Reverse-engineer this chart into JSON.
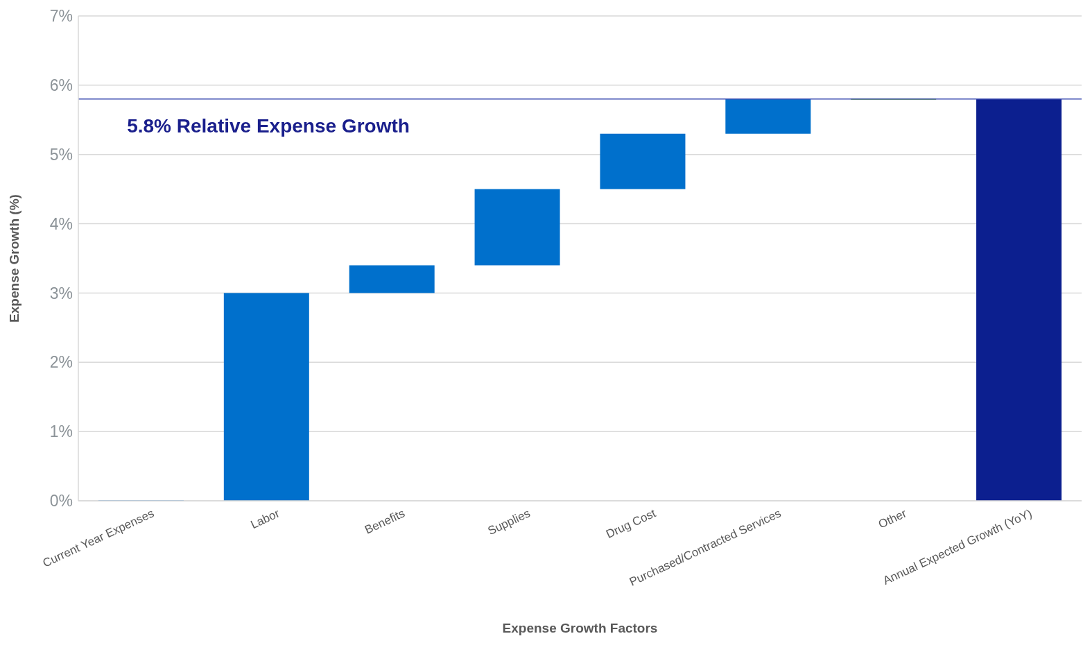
{
  "chart_data": {
    "type": "bar",
    "xlabel": "Expense Growth Factors",
    "ylabel": "Expense Growth (%)",
    "categories": [
      "Current Year Expenses",
      "Labor",
      "Benefits",
      "Supplies",
      "Drug Cost",
      "Purchased/Contracted Services",
      "Other",
      "Annual Expected Growth (YoY)"
    ],
    "values": [
      0,
      3.0,
      0.4,
      1.1,
      0.8,
      0.5,
      0,
      5.8
    ],
    "base": [
      0,
      0,
      3.0,
      3.4,
      4.5,
      5.3,
      5.8,
      0
    ],
    "colors": [
      "#5b9bd5",
      "#0070cc",
      "#0070cc",
      "#0070cc",
      "#0070cc",
      "#0070cc",
      "#70ad47",
      "#0c1f8f"
    ],
    "ylim": [
      0,
      7
    ],
    "yticks": [
      {
        "value": 0,
        "label": "0%"
      },
      {
        "value": 1,
        "label": "1%"
      },
      {
        "value": 2,
        "label": "2%"
      },
      {
        "value": 3,
        "label": "3%"
      },
      {
        "value": 4,
        "label": "4%"
      },
      {
        "value": 5,
        "label": "5%"
      },
      {
        "value": 6,
        "label": "6%"
      },
      {
        "value": 7,
        "label": "7%"
      }
    ],
    "ref_lines": [
      {
        "axis": "y",
        "value": 5.8,
        "label": "5.8% Relative Expense Growth",
        "color": "#3a4bb0"
      }
    ],
    "grid": "y",
    "legend": false
  }
}
